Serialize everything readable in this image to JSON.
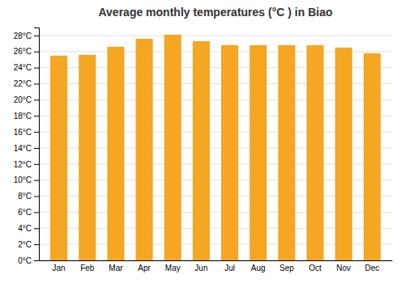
{
  "chart_data": {
    "type": "bar",
    "title": "Average monthly temperatures (°C ) in Biao",
    "categories": [
      "Jan",
      "Feb",
      "Mar",
      "Apr",
      "May",
      "Jun",
      "Jul",
      "Aug",
      "Sep",
      "Oct",
      "Nov",
      "Dec"
    ],
    "values": [
      25.5,
      25.6,
      26.6,
      27.6,
      28.1,
      27.3,
      26.8,
      26.8,
      26.8,
      26.8,
      26.5,
      25.8
    ],
    "color": "#F5A623",
    "ylim": [
      0,
      29
    ],
    "yticks": [
      {
        "value": 0,
        "label": "0°C"
      },
      {
        "value": 2,
        "label": "2°C"
      },
      {
        "value": 4,
        "label": "4°C"
      },
      {
        "value": 6,
        "label": "6°C"
      },
      {
        "value": 8,
        "label": "8°C"
      },
      {
        "value": 10,
        "label": "10°C"
      },
      {
        "value": 12,
        "label": "12°C"
      },
      {
        "value": 14,
        "label": "14°C"
      },
      {
        "value": 16,
        "label": "16°C"
      },
      {
        "value": 18,
        "label": "18°C"
      },
      {
        "value": 20,
        "label": "20°C"
      },
      {
        "value": 22,
        "label": "22°C"
      },
      {
        "value": 24,
        "label": "24°C"
      },
      {
        "value": 26,
        "label": "26°C"
      },
      {
        "value": 28,
        "label": "28°C"
      }
    ],
    "grid": true
  }
}
